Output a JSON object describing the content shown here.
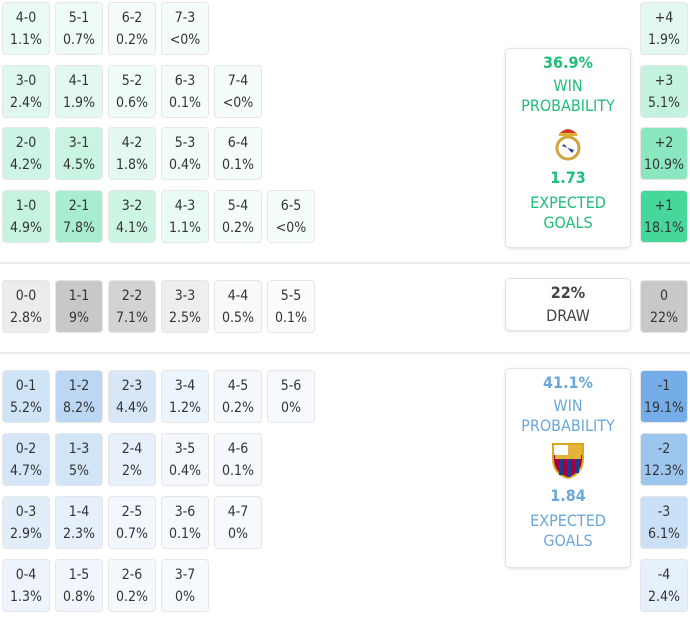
{
  "home": {
    "win_pct": "36.9%",
    "win_label": "WIN PROBABILITY",
    "xg": "1.73",
    "xg_label": "EXPECTED GOALS",
    "color": "#1fbf78",
    "rows": [
      [
        [
          "4-0",
          "1.1%"
        ],
        [
          "5-1",
          "0.7%"
        ],
        [
          "6-2",
          "0.2%"
        ],
        [
          "7-3",
          "<0%"
        ]
      ],
      [
        [
          "3-0",
          "2.4%"
        ],
        [
          "4-1",
          "1.9%"
        ],
        [
          "5-2",
          "0.6%"
        ],
        [
          "6-3",
          "0.1%"
        ],
        [
          "7-4",
          "<0%"
        ]
      ],
      [
        [
          "2-0",
          "4.2%"
        ],
        [
          "3-1",
          "4.5%"
        ],
        [
          "4-2",
          "1.8%"
        ],
        [
          "5-3",
          "0.4%"
        ],
        [
          "6-4",
          "0.1%"
        ]
      ],
      [
        [
          "1-0",
          "4.9%"
        ],
        [
          "2-1",
          "7.8%"
        ],
        [
          "3-2",
          "4.1%"
        ],
        [
          "4-3",
          "1.1%"
        ],
        [
          "5-4",
          "0.2%"
        ],
        [
          "6-5",
          "<0%"
        ]
      ]
    ],
    "margins": [
      [
        "+4",
        "1.9%"
      ],
      [
        "+3",
        "5.1%"
      ],
      [
        "+2",
        "10.9%"
      ],
      [
        "+1",
        "18.1%"
      ]
    ]
  },
  "draw": {
    "pct": "22%",
    "label": "DRAW",
    "row": [
      [
        "0-0",
        "2.8%"
      ],
      [
        "1-1",
        "9%"
      ],
      [
        "2-2",
        "7.1%"
      ],
      [
        "3-3",
        "2.5%"
      ],
      [
        "4-4",
        "0.5%"
      ],
      [
        "5-5",
        "0.1%"
      ]
    ],
    "margin": [
      "0",
      "22%"
    ]
  },
  "away": {
    "win_pct": "41.1%",
    "win_label": "WIN PROBABILITY",
    "xg": "1.84",
    "xg_label": "EXPECTED GOALS",
    "color": "#6aa8d8",
    "rows": [
      [
        [
          "0-1",
          "5.2%"
        ],
        [
          "1-2",
          "8.2%"
        ],
        [
          "2-3",
          "4.4%"
        ],
        [
          "3-4",
          "1.2%"
        ],
        [
          "4-5",
          "0.2%"
        ],
        [
          "5-6",
          "0%"
        ]
      ],
      [
        [
          "0-2",
          "4.7%"
        ],
        [
          "1-3",
          "5%"
        ],
        [
          "2-4",
          "2%"
        ],
        [
          "3-5",
          "0.4%"
        ],
        [
          "4-6",
          "0.1%"
        ]
      ],
      [
        [
          "0-3",
          "2.9%"
        ],
        [
          "1-4",
          "2.3%"
        ],
        [
          "2-5",
          "0.7%"
        ],
        [
          "3-6",
          "0.1%"
        ],
        [
          "4-7",
          "0%"
        ]
      ],
      [
        [
          "0-4",
          "1.3%"
        ],
        [
          "1-5",
          "0.8%"
        ],
        [
          "2-6",
          "0.2%"
        ],
        [
          "3-7",
          "0%"
        ]
      ]
    ],
    "margins": [
      [
        "-1",
        "19.1%"
      ],
      [
        "-2",
        "12.3%"
      ],
      [
        "-3",
        "6.1%"
      ],
      [
        "-4",
        "2.4%"
      ]
    ]
  }
}
